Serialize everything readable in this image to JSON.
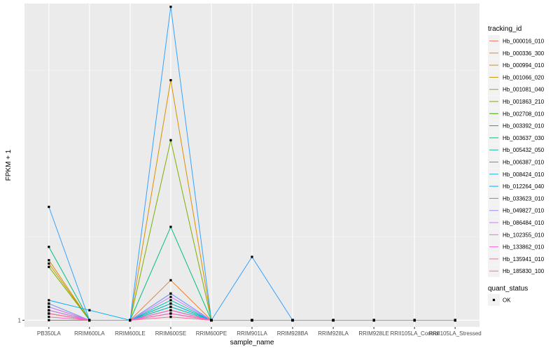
{
  "chart_data": {
    "type": "line",
    "xlabel": "sample_name",
    "ylabel": "FPKM + 1",
    "categories": [
      "PB350LA",
      "RRIM600LA",
      "RRIM600LE",
      "RRIM600SE",
      "RRIM600PE",
      "RRIM901LA",
      "RRIM928BA",
      "RRIM928LA",
      "RRIM928LE",
      "RRII105LA_Control",
      "RRII105LA_Stressed"
    ],
    "y_ticks": [
      {
        "value": 1,
        "label": "1"
      }
    ],
    "ylim": [
      0.98,
      1.95
    ],
    "grid": true,
    "legend": {
      "title": "tracking_id",
      "placement": "right"
    },
    "status_legend": {
      "title": "quant_status",
      "items": [
        {
          "label": "OK"
        }
      ]
    },
    "series": [
      {
        "name": "Hb_000016_010",
        "color": "#F8766D",
        "values": [
          1.03,
          1.0,
          1.0,
          1.03,
          1.0,
          1.0,
          1.0,
          1.0,
          1.0,
          1.0,
          1.0
        ]
      },
      {
        "name": "Hb_000336_300",
        "color": "#EA8331",
        "values": [
          1.04,
          1.0,
          1.0,
          1.12,
          1.0,
          1.0,
          1.0,
          1.0,
          1.0,
          1.0,
          1.0
        ]
      },
      {
        "name": "Hb_000994_010",
        "color": "#D89000",
        "values": [
          1.18,
          1.0,
          1.0,
          1.72,
          1.0,
          1.0,
          1.0,
          1.0,
          1.0,
          1.0,
          1.0
        ]
      },
      {
        "name": "Hb_001066_020",
        "color": "#C09B00",
        "values": [
          1.17,
          1.0,
          1.0,
          1.05,
          1.0,
          1.0,
          1.0,
          1.0,
          1.0,
          1.0,
          1.0
        ]
      },
      {
        "name": "Hb_001081_040",
        "color": "#A3A500",
        "values": [
          1.03,
          1.0,
          1.0,
          1.04,
          1.0,
          1.0,
          1.0,
          1.0,
          1.0,
          1.0,
          1.0
        ]
      },
      {
        "name": "Hb_001863_210",
        "color": "#7CAE00",
        "values": [
          1.16,
          1.0,
          1.0,
          1.54,
          1.0,
          1.0,
          1.0,
          1.0,
          1.0,
          1.0,
          1.0
        ]
      },
      {
        "name": "Hb_002708_010",
        "color": "#39B600",
        "values": [
          1.02,
          1.0,
          1.0,
          1.02,
          1.0,
          1.0,
          1.0,
          1.0,
          1.0,
          1.0,
          1.0
        ]
      },
      {
        "name": "Hb_003392_010",
        "color": "#00BB4E",
        "values": [
          1.02,
          1.0,
          1.0,
          1.03,
          1.0,
          1.0,
          1.0,
          1.0,
          1.0,
          1.0,
          1.0
        ]
      },
      {
        "name": "Hb_003637_030",
        "color": "#00BF7D",
        "values": [
          1.22,
          1.0,
          1.0,
          1.28,
          1.0,
          1.0,
          1.0,
          1.0,
          1.0,
          1.0,
          1.0
        ]
      },
      {
        "name": "Hb_005432_050",
        "color": "#00C1A3",
        "values": [
          1.05,
          1.0,
          1.0,
          1.06,
          1.0,
          1.0,
          1.0,
          1.0,
          1.0,
          1.0,
          1.0
        ]
      },
      {
        "name": "Hb_006387_010",
        "color": "#00BFC4",
        "values": [
          1.03,
          1.0,
          1.0,
          1.04,
          1.0,
          1.0,
          1.0,
          1.0,
          1.0,
          1.0,
          1.0
        ]
      },
      {
        "name": "Hb_008424_010",
        "color": "#00BAE0",
        "values": [
          1.0,
          1.0,
          1.0,
          1.08,
          1.0,
          1.0,
          1.0,
          1.0,
          1.0,
          1.0,
          1.0
        ]
      },
      {
        "name": "Hb_012264_040",
        "color": "#00B0F6",
        "values": [
          1.06,
          1.03,
          1.0,
          1.05,
          1.0,
          1.0,
          1.0,
          1.0,
          1.0,
          1.0,
          1.0
        ]
      },
      {
        "name": "Hb_033623_010",
        "color": "#35A2FF",
        "values": [
          1.34,
          1.0,
          1.0,
          1.94,
          1.0,
          1.19,
          1.0,
          1.0,
          1.0,
          1.0,
          1.0
        ]
      },
      {
        "name": "Hb_049827_010",
        "color": "#9590FF",
        "values": [
          1.05,
          1.0,
          1.0,
          1.08,
          1.0,
          1.0,
          1.0,
          1.0,
          1.0,
          1.0,
          1.0
        ]
      },
      {
        "name": "Hb_086484_010",
        "color": "#C77CFF",
        "values": [
          1.04,
          1.0,
          1.0,
          1.07,
          1.0,
          1.0,
          1.0,
          1.0,
          1.0,
          1.0,
          1.0
        ]
      },
      {
        "name": "Hb_102355_010",
        "color": "#E76BF3",
        "values": [
          1.03,
          1.0,
          1.0,
          1.02,
          1.0,
          1.0,
          1.0,
          1.0,
          1.0,
          1.0,
          1.0
        ]
      },
      {
        "name": "Hb_133862_010",
        "color": "#FA62DB",
        "values": [
          1.02,
          1.0,
          1.0,
          1.03,
          1.0,
          1.0,
          1.0,
          1.0,
          1.0,
          1.0,
          1.0
        ]
      },
      {
        "name": "Hb_135941_010",
        "color": "#FF62BC",
        "values": [
          1.01,
          1.0,
          1.0,
          1.02,
          1.0,
          1.0,
          1.0,
          1.0,
          1.0,
          1.0,
          1.0
        ]
      },
      {
        "name": "Hb_185830_100",
        "color": "#FF6C91",
        "values": [
          1.02,
          1.0,
          1.0,
          1.01,
          1.0,
          1.0,
          1.0,
          1.0,
          1.0,
          1.0,
          1.0
        ]
      }
    ]
  }
}
